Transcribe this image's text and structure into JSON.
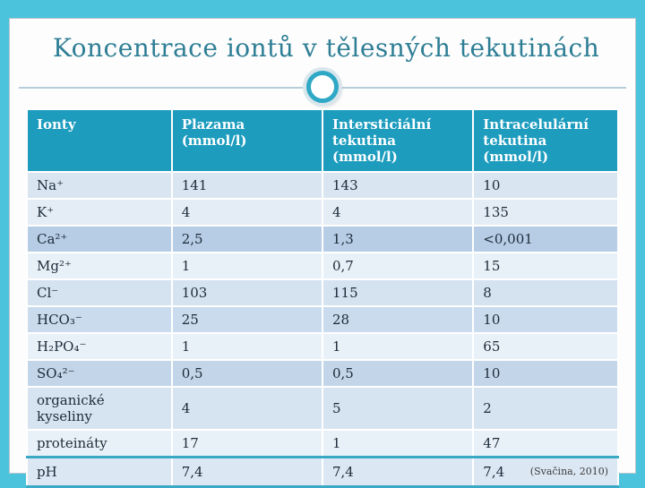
{
  "slide": {
    "title": "Koncentrace iontů v tělesných tekutinách",
    "citation": "(Svačina, 2010)"
  },
  "table": {
    "col0_header": "Ionty",
    "cols": [
      {
        "label": "Plazama",
        "unit": "(mmol/l)"
      },
      {
        "label": "Intersticiální tekutina",
        "unit": "(mmol/l)"
      },
      {
        "label": "Intracelulární tekutina",
        "unit": "(mmol/l)"
      }
    ],
    "rows": [
      {
        "ion": "Na⁺",
        "c1": "141",
        "c2": "143",
        "c3": "10"
      },
      {
        "ion": "K⁺",
        "c1": "4",
        "c2": "4",
        "c3": "135"
      },
      {
        "ion": "Ca²⁺",
        "c1": "2,5",
        "c2": "1,3",
        "c3": "<0,001"
      },
      {
        "ion": "Mg²⁺",
        "c1": "1",
        "c2": "0,7",
        "c3": "15"
      },
      {
        "ion": "Cl⁻",
        "c1": "103",
        "c2": "115",
        "c3": "8"
      },
      {
        "ion": "HCO₃⁻",
        "c1": "25",
        "c2": "28",
        "c3": "10"
      },
      {
        "ion": "H₂PO₄⁻",
        "c1": "1",
        "c2": "1",
        "c3": "65"
      },
      {
        "ion": "SO₄²⁻",
        "c1": "0,5",
        "c2": "0,5",
        "c3": "10"
      },
      {
        "ion": "organické kyseliny",
        "c1": "4",
        "c2": "5",
        "c3": "2"
      },
      {
        "ion": "proteináty",
        "c1": "17",
        "c2": "1",
        "c3": "47"
      },
      {
        "ion": "pH",
        "c1": "7,4",
        "c2": "7,4",
        "c3": "7,4"
      }
    ]
  }
}
